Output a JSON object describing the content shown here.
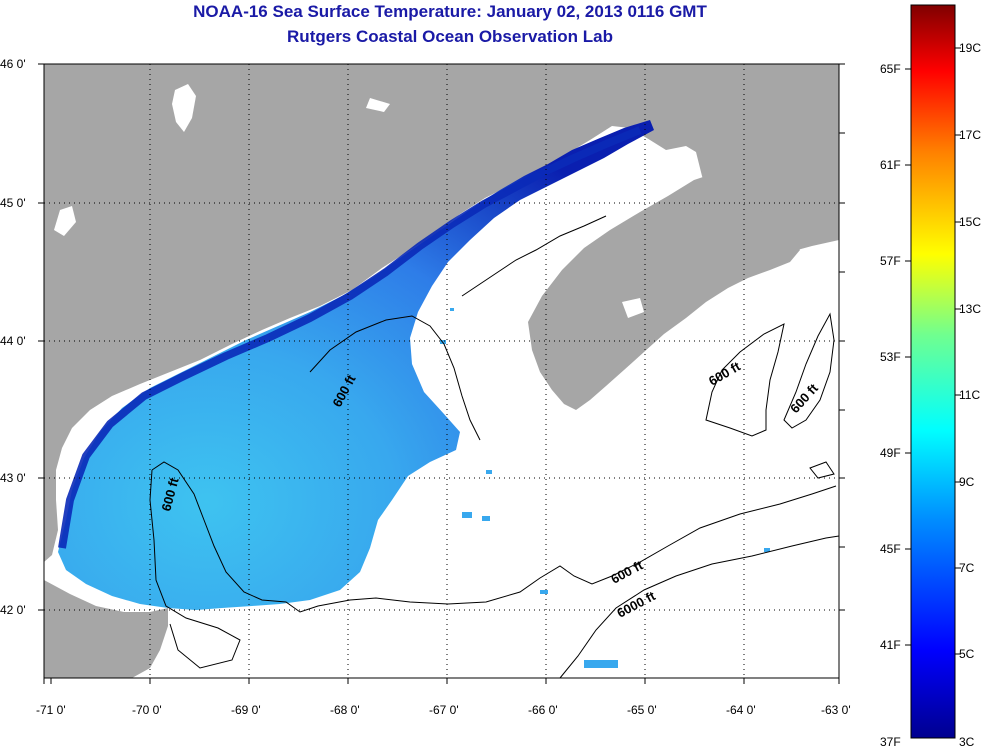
{
  "title": "NOAA-16 Sea Surface Temperature:  January 02, 2013 0116 GMT",
  "subtitle": "Rutgers Coastal Ocean Observation Lab",
  "axes": {
    "lon_labels": [
      "-71 0'",
      "-70 0'",
      "-69 0'",
      "-68 0'",
      "-67 0'",
      "-66 0'",
      "-65 0'",
      "-64 0'",
      "-63 0'"
    ],
    "lat_labels": [
      "46 0'",
      "45 0'",
      "44 0'",
      "43 0'",
      "42 0'"
    ]
  },
  "contours": {
    "label_600_a": "600 ft",
    "label_600_b": "600 ft",
    "label_600_c": "600 ft",
    "label_600_d": "600 ft",
    "label_600_e": "600 ft",
    "label_6000": "6000 ft"
  },
  "colorbar": {
    "f_labels": [
      "65F",
      "61F",
      "57F",
      "53F",
      "49F",
      "45F",
      "41F",
      "37F"
    ],
    "c_labels": [
      "19C",
      "17C",
      "15C",
      "13C",
      "11C",
      "9C",
      "7C",
      "5C",
      "3C"
    ]
  },
  "colors": {
    "land": "#a6a6a6",
    "no_data": "#ffffff",
    "title": "#1a1aa6",
    "sst_cold": "#0a1fb0",
    "sst_mid": "#2e8df0",
    "sst_warm": "#3ec3f0"
  }
}
